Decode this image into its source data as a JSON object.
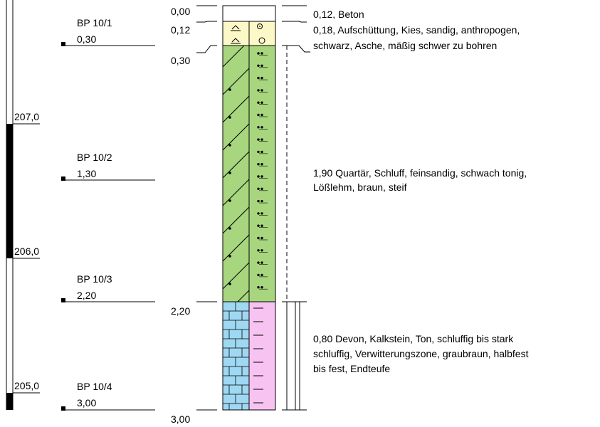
{
  "elevation_scale": {
    "labels": [
      "207,0",
      "206,0",
      "205,0"
    ]
  },
  "samples": [
    {
      "name": "BP 10/1",
      "depth": "0,30"
    },
    {
      "name": "BP 10/2",
      "depth": "1,30"
    },
    {
      "name": "BP 10/3",
      "depth": "2,20"
    },
    {
      "name": "BP 10/4",
      "depth": "3,00"
    }
  ],
  "depth_labels": [
    "0,00",
    "0,12",
    "0,30",
    "2,20",
    "3,00"
  ],
  "layers": [
    {
      "desc": [
        "0,12, Beton"
      ],
      "color": "#ffffff"
    },
    {
      "desc": [
        "0,18, Aufschüttung, Kies, sandig, anthropogen,",
        "schwarz, Asche, mäßig schwer zu bohren"
      ],
      "color": "#fdf8c8"
    },
    {
      "desc": [
        "1,90 Quartär, Schluff, feinsandig, schwach tonig,",
        "Lößlehm, braun, steif"
      ],
      "color": "#a8d67f"
    },
    {
      "desc": [
        "0,80 Devon, Kalkstein, Ton, schluffig bis stark",
        "schluffig, Verwitterungszone, graubraun, halbfest",
        "bis fest, Endteufe"
      ],
      "color_left": "#9fd8f2",
      "color_right": "#f7c3f1"
    }
  ]
}
